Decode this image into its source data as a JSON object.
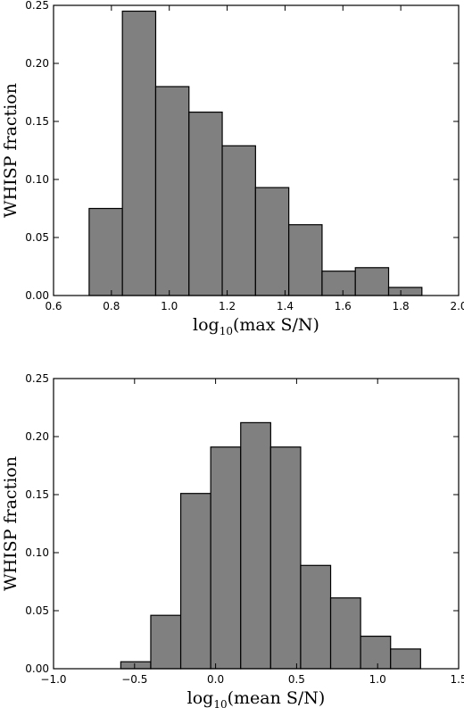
{
  "chart_data": [
    {
      "type": "bar",
      "title": "",
      "xlabel_prefix": "log",
      "xlabel_sub": "10",
      "xlabel_suffix": "(max S/N)",
      "ylabel": "WHISP fraction",
      "xlim": [
        0.6,
        2.0
      ],
      "ylim": [
        0,
        0.25
      ],
      "xticks": [
        "0.6",
        "0.8",
        "1.0",
        "1.2",
        "1.4",
        "1.6",
        "1.8",
        "2.0"
      ],
      "yticks": [
        "0.00",
        "0.05",
        "0.10",
        "0.15",
        "0.20",
        "0.25"
      ],
      "grid": false,
      "bins": [
        {
          "x0": 0.723,
          "x1": 0.838,
          "value": 0.075
        },
        {
          "x0": 0.838,
          "x1": 0.953,
          "value": 0.245
        },
        {
          "x0": 0.953,
          "x1": 1.068,
          "value": 0.18
        },
        {
          "x0": 1.068,
          "x1": 1.183,
          "value": 0.158
        },
        {
          "x0": 1.183,
          "x1": 1.298,
          "value": 0.129
        },
        {
          "x0": 1.298,
          "x1": 1.413,
          "value": 0.093
        },
        {
          "x0": 1.413,
          "x1": 1.528,
          "value": 0.061
        },
        {
          "x0": 1.528,
          "x1": 1.643,
          "value": 0.021
        },
        {
          "x0": 1.643,
          "x1": 1.758,
          "value": 0.024
        },
        {
          "x0": 1.758,
          "x1": 1.873,
          "value": 0.007
        }
      ]
    },
    {
      "type": "bar",
      "title": "",
      "xlabel_prefix": "log",
      "xlabel_sub": "10",
      "xlabel_suffix": "(mean S/N)",
      "ylabel": "WHISP fraction",
      "xlim": [
        -1.0,
        1.5
      ],
      "ylim": [
        0,
        0.25
      ],
      "xticks": [
        "−1.0",
        "−0.5",
        "0.0",
        "0.5",
        "1.0",
        "1.5"
      ],
      "yticks": [
        "0.00",
        "0.05",
        "0.10",
        "0.15",
        "0.20",
        "0.25"
      ],
      "grid": false,
      "bins": [
        {
          "x0": -0.585,
          "x1": -0.4,
          "value": 0.006
        },
        {
          "x0": -0.4,
          "x1": -0.215,
          "value": 0.046
        },
        {
          "x0": -0.215,
          "x1": -0.03,
          "value": 0.151
        },
        {
          "x0": -0.03,
          "x1": 0.155,
          "value": 0.191
        },
        {
          "x0": 0.155,
          "x1": 0.34,
          "value": 0.212
        },
        {
          "x0": 0.34,
          "x1": 0.525,
          "value": 0.191
        },
        {
          "x0": 0.525,
          "x1": 0.71,
          "value": 0.089
        },
        {
          "x0": 0.71,
          "x1": 0.895,
          "value": 0.061
        },
        {
          "x0": 0.895,
          "x1": 1.08,
          "value": 0.028
        },
        {
          "x0": 1.08,
          "x1": 1.265,
          "value": 0.017
        }
      ]
    }
  ]
}
